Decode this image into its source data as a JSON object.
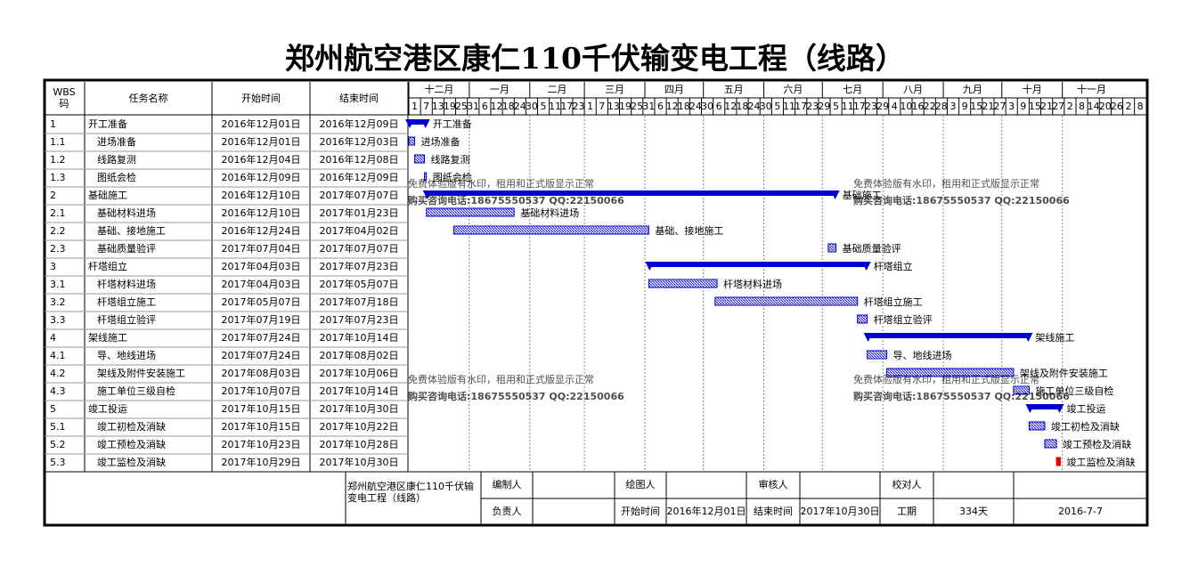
{
  "title": "郑州航空港区康仁110千伏输变电工程（线路）",
  "header": {
    "wbs": [
      "WBS",
      "码"
    ],
    "name": "任务名称",
    "start": "开始时间",
    "end": "结束时间"
  },
  "months": [
    "十二月",
    "一月",
    "二月",
    "三月",
    "四月",
    "五月",
    "六月",
    "七月",
    "八月",
    "九月",
    "十月",
    "十一月"
  ],
  "day_ticks": [
    1,
    7,
    13,
    19,
    25,
    31,
    6,
    12,
    18,
    24,
    30,
    5,
    11,
    17,
    23,
    1,
    7,
    13,
    19,
    25,
    31,
    6,
    12,
    18,
    24,
    30,
    6,
    12,
    18,
    24,
    30,
    5,
    11,
    17,
    23,
    29,
    5,
    11,
    17,
    23,
    29,
    4,
    10,
    16,
    22,
    28,
    3,
    9,
    15,
    21,
    27,
    3,
    9,
    15,
    21,
    27,
    2,
    8,
    14,
    20,
    26,
    2,
    8
  ],
  "tasks": [
    {
      "wbs": "1",
      "name": "开工准备",
      "start": "2016年12月01日",
      "end": "2016年12月09日",
      "summary": true
    },
    {
      "wbs": "1.1",
      "name": "进场准备",
      "start": "2016年12月01日",
      "end": "2016年12月03日"
    },
    {
      "wbs": "1.2",
      "name": "线路复测",
      "start": "2016年12月04日",
      "end": "2016年12月08日"
    },
    {
      "wbs": "1.3",
      "name": "图纸会检",
      "start": "2016年12月09日",
      "end": "2016年12月09日"
    },
    {
      "wbs": "2",
      "name": "基础施工",
      "start": "2016年12月10日",
      "end": "2017年07月07日",
      "summary": true
    },
    {
      "wbs": "2.1",
      "name": "基础材料进场",
      "start": "2016年12月10日",
      "end": "2017年01月23日"
    },
    {
      "wbs": "2.2",
      "name": "基础、接地施工",
      "start": "2016年12月24日",
      "end": "2017年04月02日"
    },
    {
      "wbs": "2.3",
      "name": "基础质量验评",
      "start": "2017年07月04日",
      "end": "2017年07月07日"
    },
    {
      "wbs": "3",
      "name": "杆塔组立",
      "start": "2017年04月03日",
      "end": "2017年07月23日",
      "summary": true
    },
    {
      "wbs": "3.1",
      "name": "杆塔材料进场",
      "start": "2017年04月03日",
      "end": "2017年05月07日"
    },
    {
      "wbs": "3.2",
      "name": "杆塔组立施工",
      "start": "2017年05月07日",
      "end": "2017年07月18日"
    },
    {
      "wbs": "3.3",
      "name": "杆塔组立验评",
      "start": "2017年07月19日",
      "end": "2017年07月23日"
    },
    {
      "wbs": "4",
      "name": "架线施工",
      "start": "2017年07月24日",
      "end": "2017年10月14日",
      "summary": true
    },
    {
      "wbs": "4.1",
      "name": "导、地线进场",
      "start": "2017年07月24日",
      "end": "2017年08月02日"
    },
    {
      "wbs": "4.2",
      "name": "架线及附件安装施工",
      "start": "2017年08月03日",
      "end": "2017年10月06日"
    },
    {
      "wbs": "4.3",
      "name": "施工单位三级自检",
      "start": "2017年10月07日",
      "end": "2017年10月14日"
    },
    {
      "wbs": "5",
      "name": "竣工投运",
      "start": "2017年10月15日",
      "end": "2017年10月30日",
      "summary": true
    },
    {
      "wbs": "5.1",
      "name": "竣工初检及消缺",
      "start": "2017年10月15日",
      "end": "2017年10月22日"
    },
    {
      "wbs": "5.2",
      "name": "竣工预检及消缺",
      "start": "2017年10月23日",
      "end": "2017年10月28日"
    },
    {
      "wbs": "5.3",
      "name": "竣工监检及消缺",
      "start": "2017年10月29日",
      "end": "2017年10月30日",
      "color": "#e00000"
    }
  ],
  "watermark": [
    "免费体验版有水印，租用和正式版显示正常",
    "购买咨询电话:18675550537 QQ:22150066"
  ],
  "footer": {
    "project": "郑州航空港区康仁110千伏输变电工程（线路）",
    "prepared_by": "编制人",
    "drawn_by": "绘图人",
    "reviewed_by": "审核人",
    "checked_by": "校对人",
    "responsible": "负责人",
    "start_label": "开始时间",
    "start": "2016年12月01日",
    "end_label": "结束时间",
    "end": "2017年10月30日",
    "duration_label": "工期",
    "duration": "334天",
    "date": "2016-7-7"
  }
}
